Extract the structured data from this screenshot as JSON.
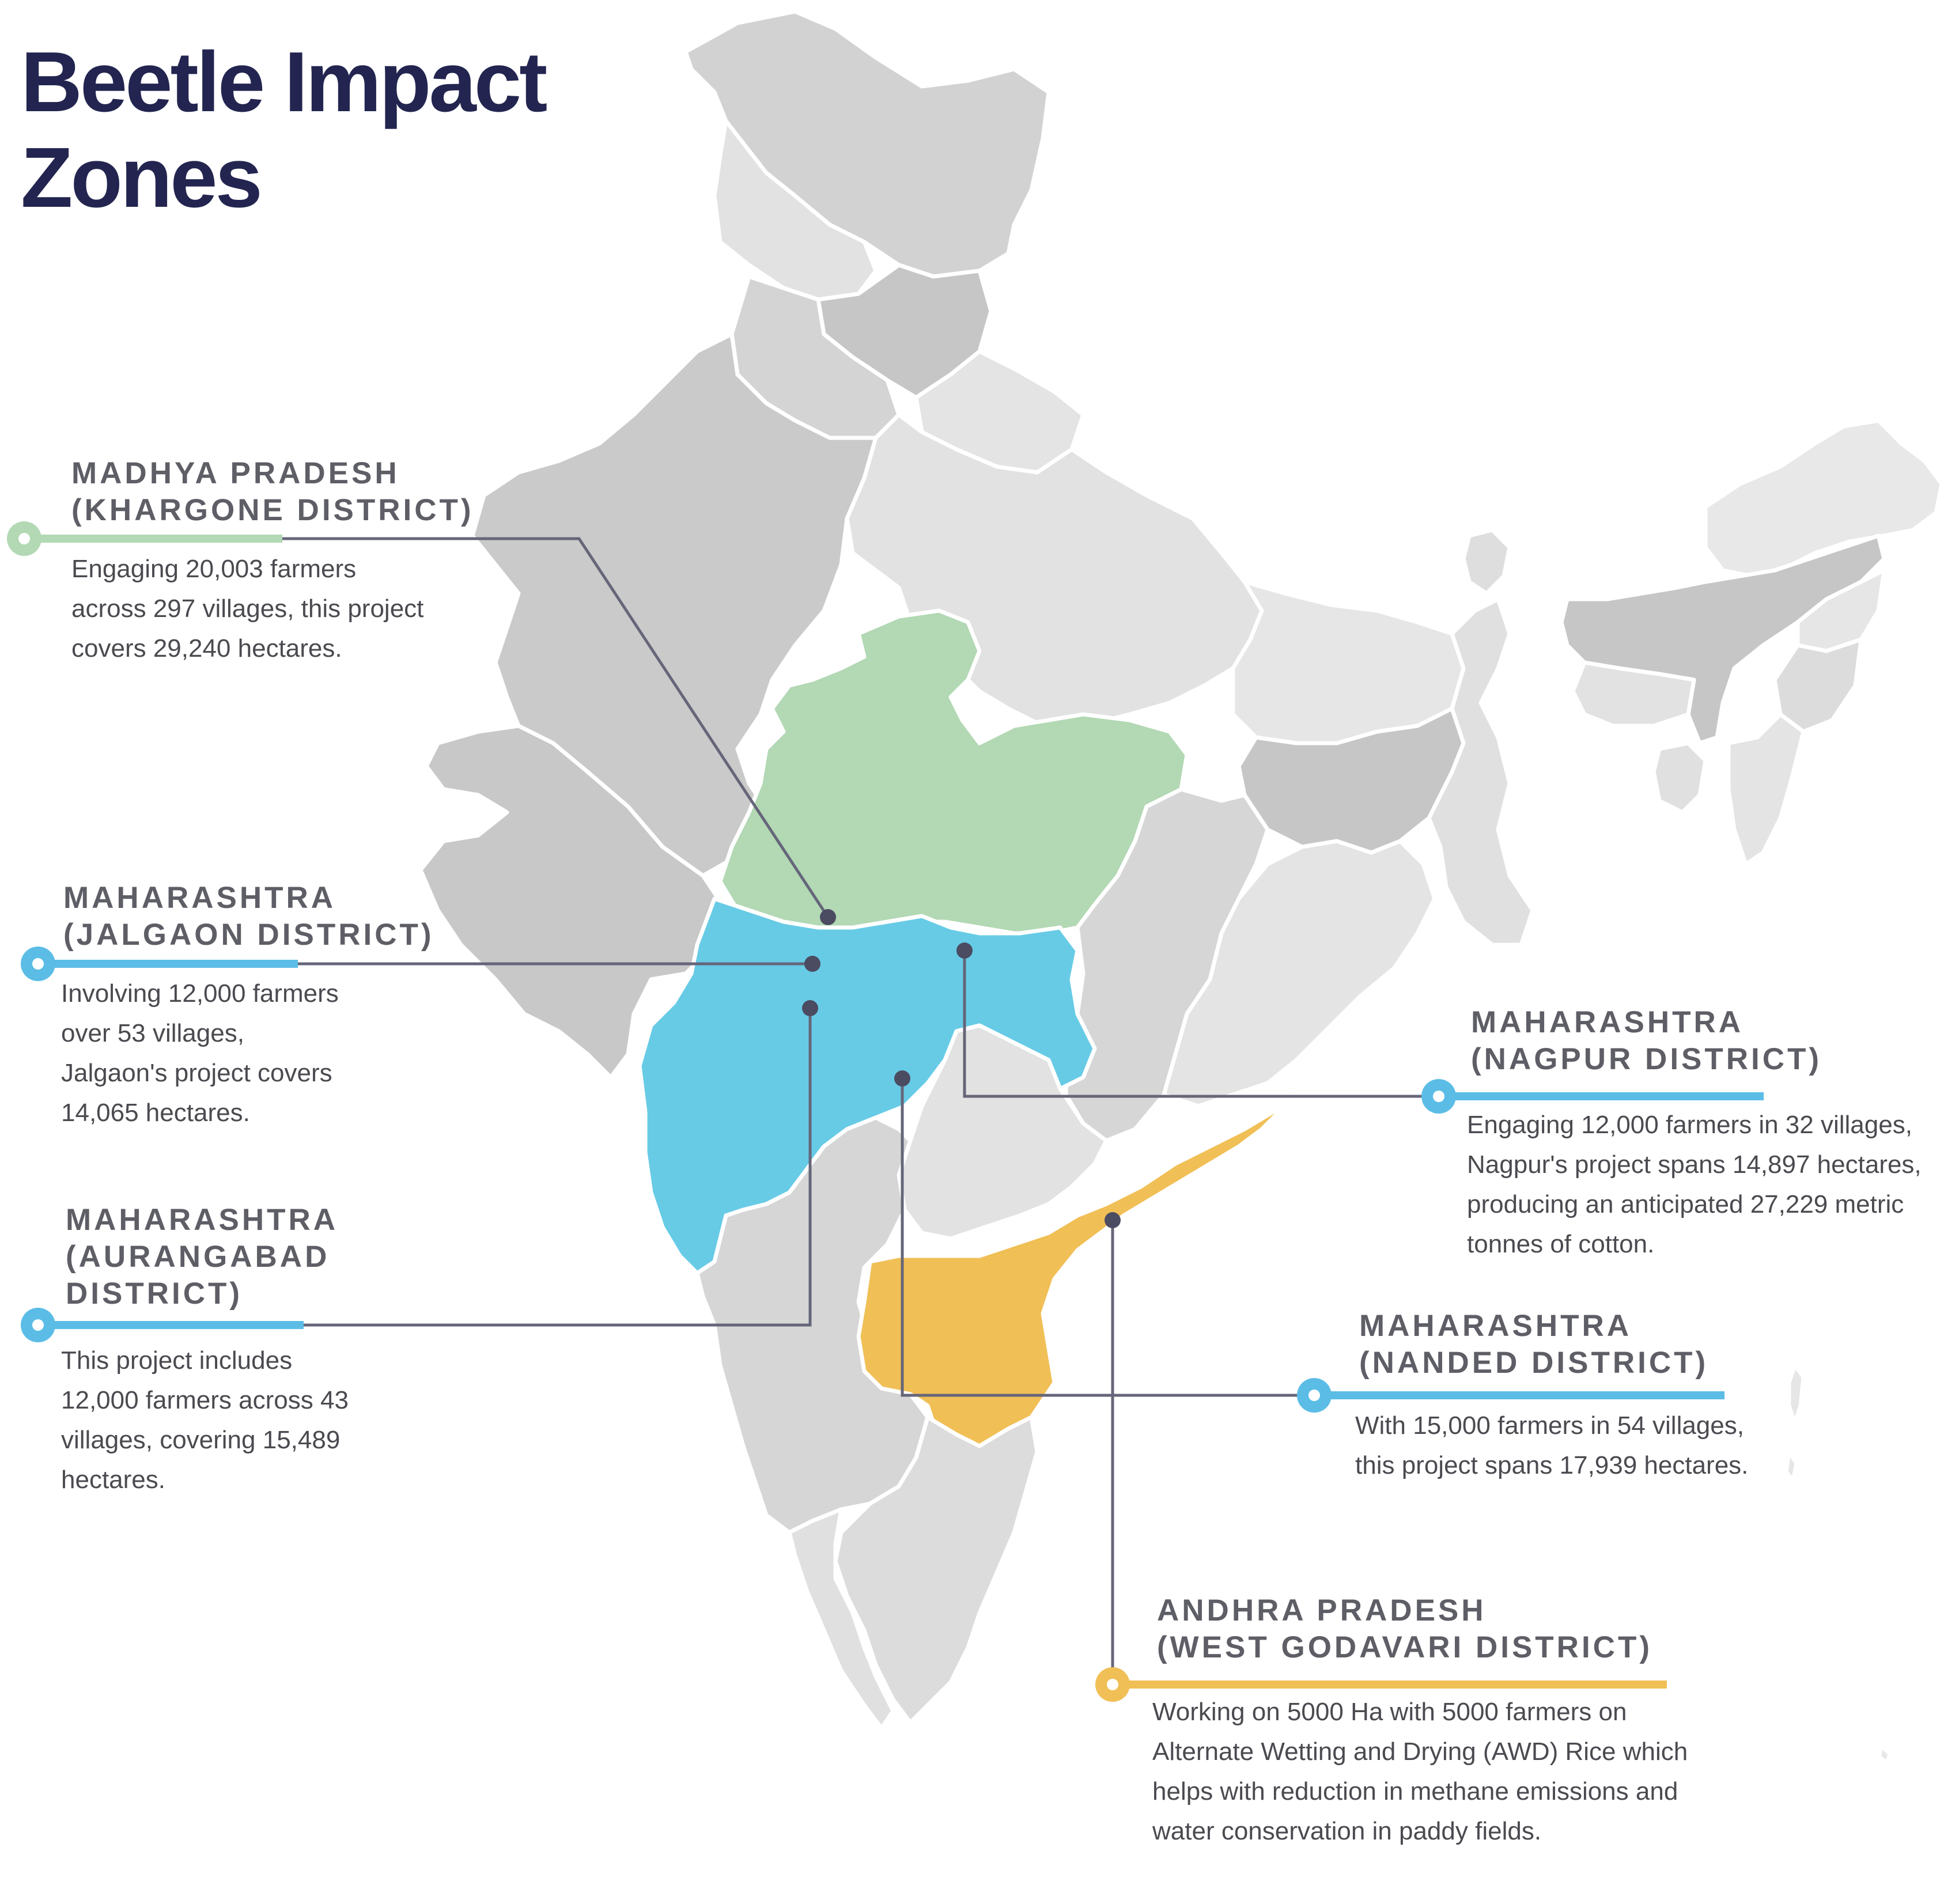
{
  "title": {
    "line1": "Beetle Impact",
    "line2": "Zones"
  },
  "colors": {
    "madhya_pradesh": "#b2d8b4",
    "maharashtra": "#67cbe6",
    "andhra_pradesh": "#f0bf56",
    "state_dark": "#c8c8c8",
    "state_medium": "#d4d4d4",
    "state_light": "#e4e4e4",
    "title": "#232550",
    "leader_line": "#66667a"
  },
  "zones": [
    {
      "id": "madhya_pradesh_khargone",
      "heading": [
        "MADHYA PRADESH",
        "(KHARGONE DISTRICT)"
      ],
      "body": [
        "Engaging 20,003 farmers",
        "across 297 villages, this project",
        "covers 29,240 hectares."
      ],
      "color": "#b2d8b4"
    },
    {
      "id": "maharashtra_jalgaon",
      "heading": [
        "MAHARASHTRA",
        "(JALGAON DISTRICT)"
      ],
      "body": [
        "Involving 12,000 farmers",
        "over 53 villages,",
        "Jalgaon's project covers",
        "14,065 hectares."
      ],
      "color": "#5bbde6"
    },
    {
      "id": "maharashtra_aurangabad",
      "heading": [
        "MAHARASHTRA",
        "(AURANGABAD",
        "DISTRICT)"
      ],
      "body": [
        "This project includes",
        "12,000 farmers across 43",
        "villages, covering 15,489",
        "hectares."
      ],
      "color": "#5bbde6"
    },
    {
      "id": "maharashtra_nagpur",
      "heading": [
        "MAHARASHTRA",
        "(NAGPUR DISTRICT)"
      ],
      "body": [
        "Engaging 12,000 farmers in 32 villages,",
        "Nagpur's project spans 14,897 hectares,",
        "producing an anticipated 27,229 metric",
        "tonnes of cotton."
      ],
      "color": "#5bbde6"
    },
    {
      "id": "maharashtra_nanded",
      "heading": [
        "MAHARASHTRA",
        "(NANDED DISTRICT)"
      ],
      "body": [
        "With 15,000 farmers in 54 villages,",
        "this project spans 17,939 hectares."
      ],
      "color": "#5bbde6"
    },
    {
      "id": "andhra_pradesh_west_godavari",
      "heading": [
        "ANDHRA PRADESH",
        "(WEST GODAVARI DISTRICT)"
      ],
      "body": [
        "Working on 5000 Ha with 5000 farmers on",
        "Alternate Wetting and Drying (AWD) Rice which",
        "helps with reduction in methane emissions and",
        "water conservation in paddy fields."
      ],
      "color": "#f0bf56"
    }
  ]
}
